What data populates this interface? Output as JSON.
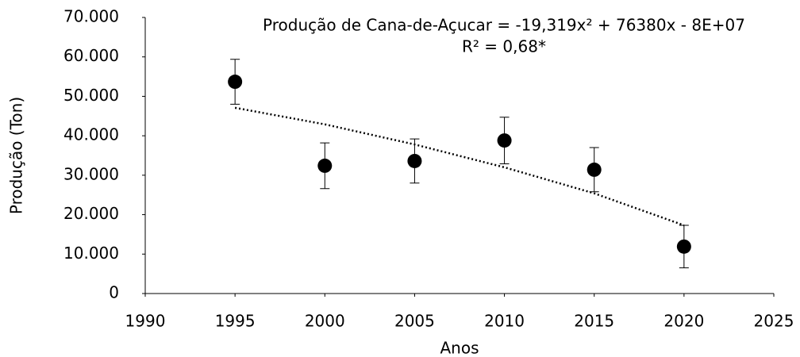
{
  "chart_data": {
    "type": "scatter",
    "annotation": [
      "Produção de Cana-de-Açucar = -19,319x² + 76380x - 8E+07",
      "R² = 0,68*"
    ],
    "x_label": "Anos",
    "y_label": "Produção (Ton)",
    "x": [
      1995,
      2000,
      2005,
      2010,
      2015,
      2020
    ],
    "values": [
      53700,
      32400,
      33600,
      38800,
      31400,
      11900
    ],
    "errors": [
      5700,
      5800,
      5600,
      5900,
      5600,
      5400
    ],
    "color": "#000000",
    "trendline": {
      "x": [
        1995,
        2000,
        2005,
        2010,
        2015,
        2020
      ],
      "values": [
        47100,
        42900,
        37800,
        32000,
        25400,
        17300
      ]
    },
    "xlim": [
      1990,
      2025
    ],
    "xticks": [
      1990,
      1995,
      2000,
      2005,
      2010,
      2015,
      2020,
      2025
    ],
    "ylim": [
      0,
      70000
    ],
    "yticks": [
      0,
      {
        "value": 10000,
        "label": "10.000"
      },
      {
        "value": 20000,
        "label": "20.000"
      },
      {
        "value": 30000,
        "label": "30.000"
      },
      {
        "value": 40000,
        "label": "40.000"
      },
      {
        "value": 50000,
        "label": "50.000"
      },
      {
        "value": 60000,
        "label": "60.000"
      },
      {
        "value": 70000,
        "label": "70.000"
      }
    ]
  }
}
